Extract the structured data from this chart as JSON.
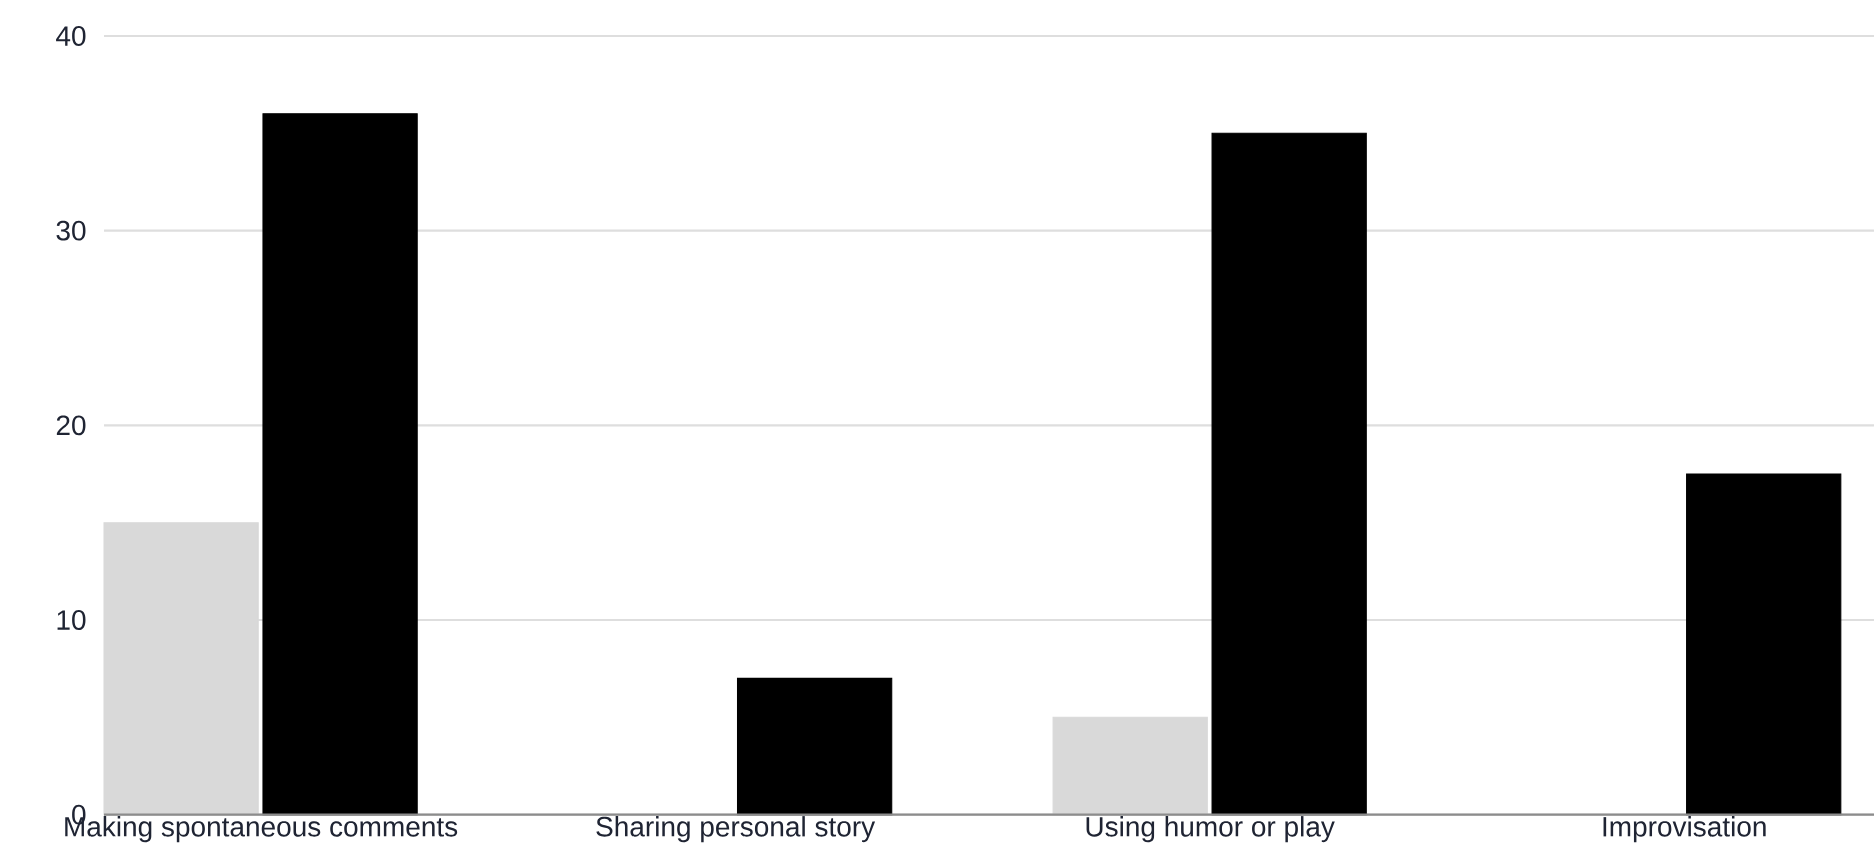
{
  "chart_data": {
    "type": "bar",
    "categories": [
      "Making spontaneous comments",
      "Sharing personal story",
      "Using humor or play",
      "Improvisation"
    ],
    "series": [
      {
        "color": "#d9d9d9",
        "values": [
          15,
          null,
          5,
          null
        ]
      },
      {
        "color": "#000000",
        "values": [
          36,
          7,
          35,
          17.5
        ]
      }
    ],
    "ylim": [
      0,
      40
    ],
    "yticks": [
      0,
      10,
      20,
      30,
      40
    ],
    "grid": "y"
  }
}
